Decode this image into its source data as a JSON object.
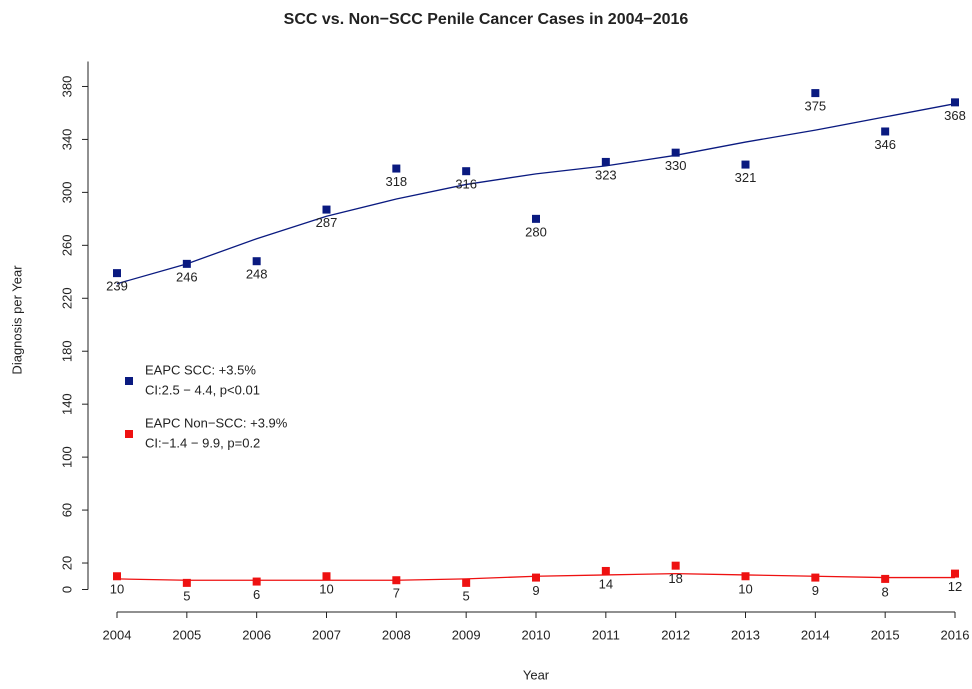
{
  "chart_data": {
    "type": "scatter",
    "title": "SCC vs. Non−SCC Penile Cancer Cases in 2004−2016",
    "xlabel": "Year",
    "ylabel": "Diagnosis per Year",
    "x": [
      2004,
      2005,
      2006,
      2007,
      2008,
      2009,
      2010,
      2011,
      2012,
      2013,
      2014,
      2015,
      2016
    ],
    "series": [
      {
        "name": "EAPC SCC: +3.5%",
        "note": "CI:2.5 − 4.4, p<0.01",
        "color": "#0a1a80",
        "values": [
          239,
          246,
          248,
          287,
          318,
          316,
          280,
          323,
          330,
          321,
          375,
          346,
          368
        ],
        "trend": [
          231,
          246,
          265,
          282,
          295,
          306,
          314,
          320,
          328,
          338,
          347,
          357,
          367
        ]
      },
      {
        "name": "EAPC Non−SCC: +3.9%",
        "note": "CI:−1.4 − 9.9, p=0.2",
        "color": "#ee1111",
        "values": [
          10,
          5,
          6,
          10,
          7,
          5,
          9,
          14,
          18,
          10,
          9,
          8,
          12
        ],
        "trend": [
          8,
          7,
          7,
          7,
          7,
          8,
          10,
          11,
          12,
          11,
          10,
          9,
          9
        ]
      }
    ],
    "xlim": [
      2004,
      2016
    ],
    "xticks": [
      2004,
      2005,
      2006,
      2007,
      2008,
      2009,
      2010,
      2011,
      2012,
      2013,
      2014,
      2015,
      2016
    ],
    "ylim": [
      -17,
      400
    ],
    "yticks": [
      0,
      20,
      60,
      100,
      140,
      180,
      220,
      260,
      300,
      340,
      380
    ]
  }
}
